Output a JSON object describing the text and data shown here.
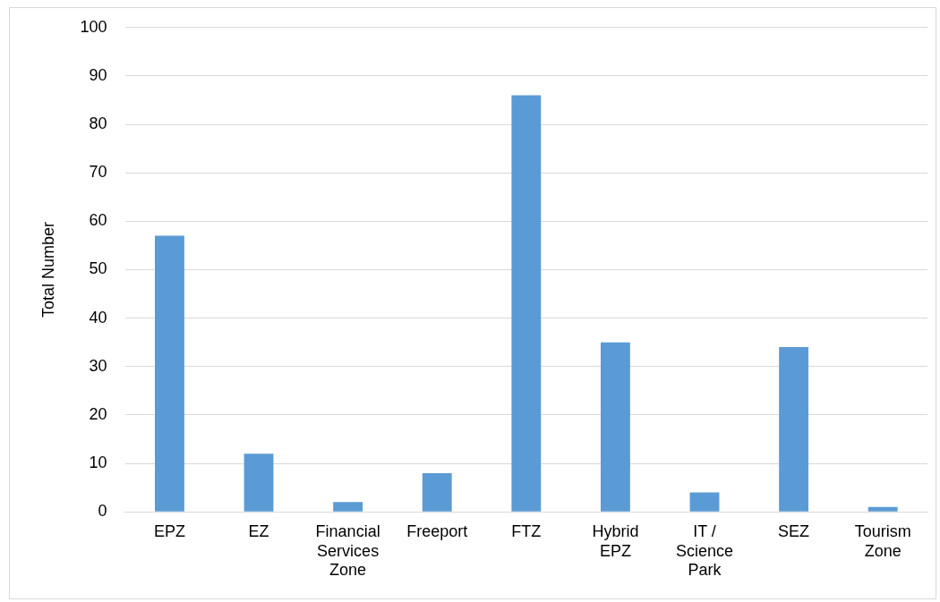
{
  "chart_data": {
    "type": "bar",
    "ylabel": "Total Number",
    "categories": [
      "EPZ",
      "EZ",
      "Financial Services Zone",
      "Freeport",
      "FTZ",
      "Hybrid EPZ",
      "IT / Science Park",
      "SEZ",
      "Tourism Zone"
    ],
    "values": [
      57,
      12,
      2,
      8,
      86,
      35,
      4,
      34,
      1
    ],
    "color": "#5b9bd5",
    "ylim": [
      0,
      100
    ],
    "yticks": [
      0,
      10,
      20,
      30,
      40,
      50,
      60,
      70,
      80,
      90,
      100
    ],
    "grid": "y",
    "legend": false
  }
}
